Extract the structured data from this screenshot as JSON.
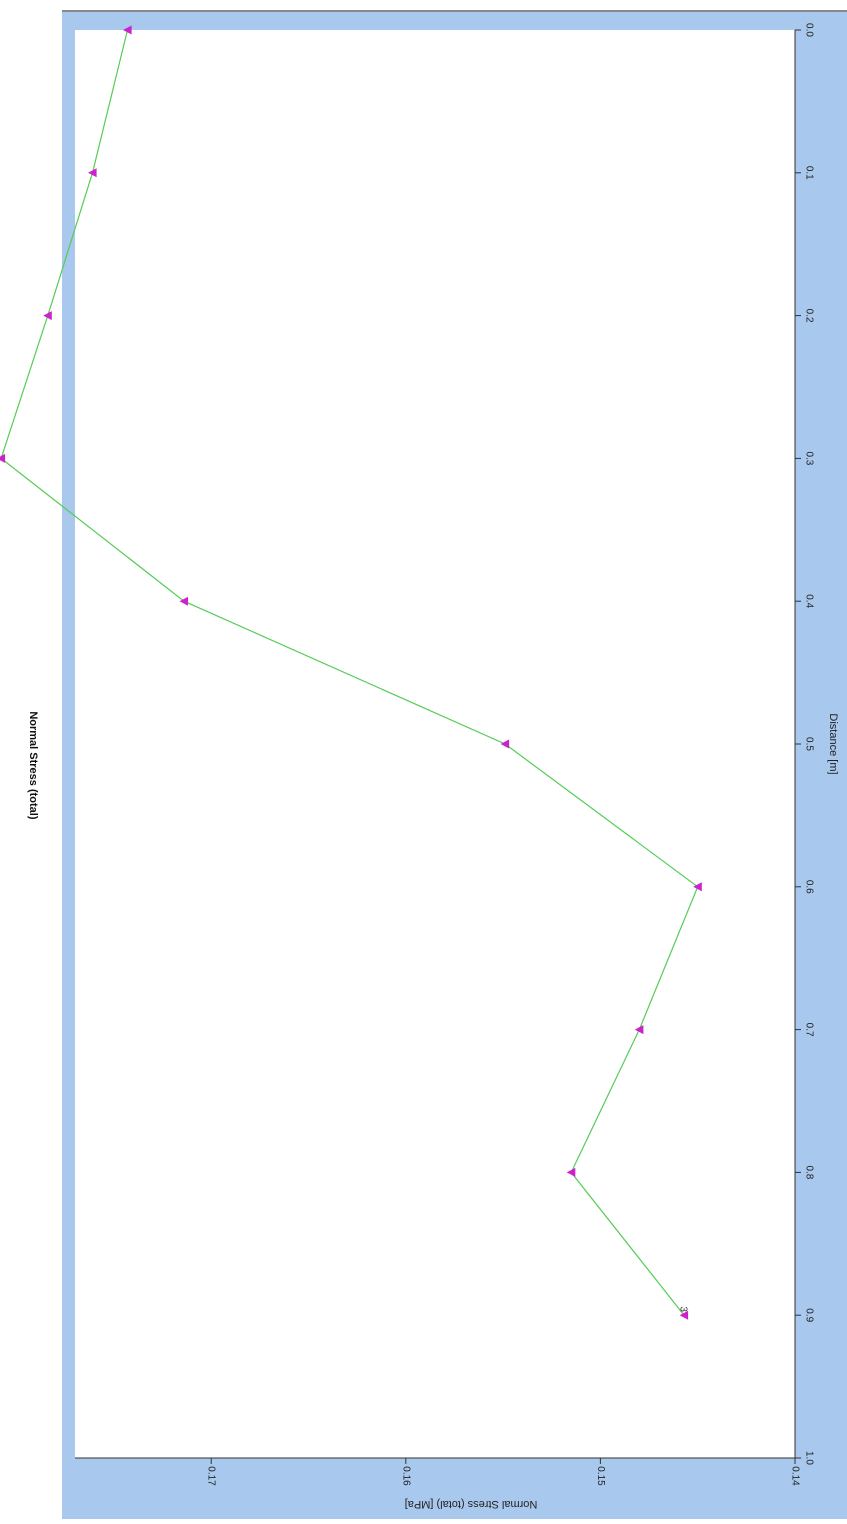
{
  "chart_data": {
    "type": "line",
    "title": "Normal Stress (total)",
    "xlabel": "Distance [m]",
    "ylabel": "Normal Stress (total) [MPa]",
    "xlim": [
      0.0,
      1.0
    ],
    "ylim": [
      0.14,
      0.177
    ],
    "x_ticks": [
      "0.0",
      "0.1",
      "0.2",
      "0.3",
      "0.4",
      "0.5",
      "0.6",
      "0.7",
      "0.8",
      "0.9",
      "1.0"
    ],
    "y_ticks": [
      "0.14",
      "0.15",
      "0.16",
      "0.17"
    ],
    "grid": false,
    "orientation": "rotated-90-clockwise",
    "colors": {
      "frame": "#a8c8ee",
      "plot_bg": "#ffffff",
      "line": "#55cc55",
      "marker": "#cc22cc",
      "text": "#222222"
    },
    "series": [
      {
        "x": [
          0.0,
          0.1,
          0.2,
          0.3,
          0.4,
          0.5,
          0.6,
          0.7,
          0.8,
          0.9
        ],
        "y": [
          0.1743,
          0.1761,
          0.1784,
          0.1808,
          0.1714,
          0.1549,
          0.145,
          0.148,
          0.1515,
          0.1457
        ],
        "point_labels": [
          "",
          "",
          "",
          "",
          "",
          "",
          "",
          "",
          "",
          "3"
        ]
      }
    ]
  }
}
